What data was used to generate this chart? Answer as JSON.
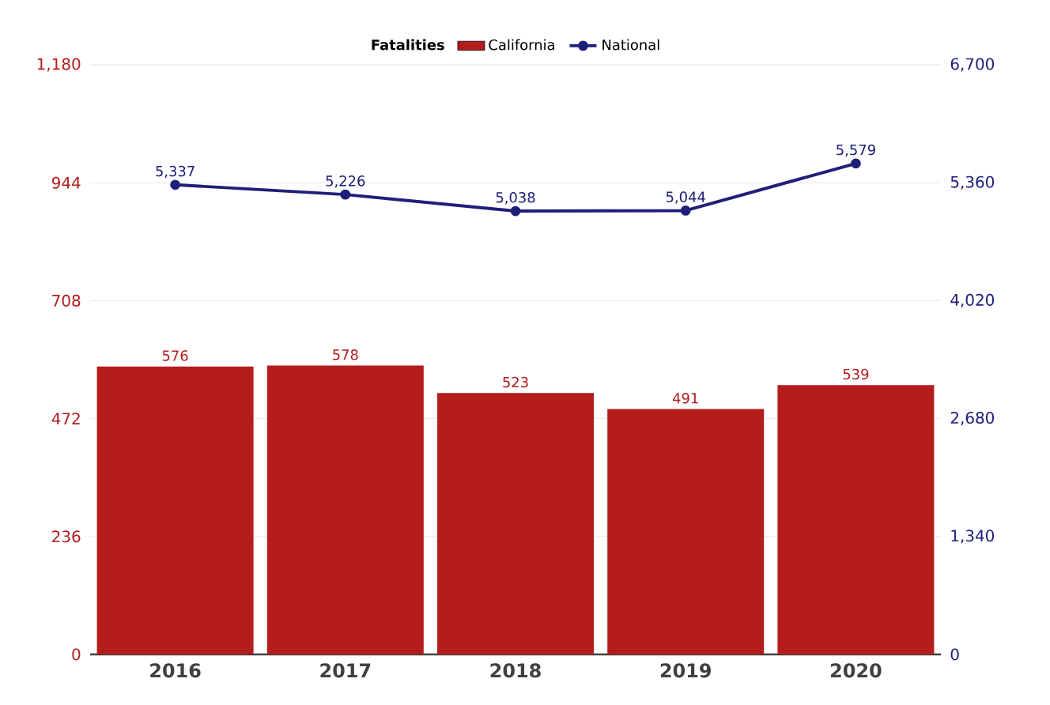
{
  "chart_data": {
    "type": "bar",
    "legend_title": "Fatalities",
    "legend": "top",
    "grid": "y",
    "categories": [
      "2016",
      "2017",
      "2018",
      "2019",
      "2020"
    ],
    "series": [
      {
        "name": "California",
        "color": "#b51c1c",
        "values": [
          576,
          578,
          523,
          491,
          539
        ],
        "value_labels": [
          "576",
          "578",
          "523",
          "491",
          "539"
        ]
      },
      {
        "name": "National",
        "type": "line",
        "axis": "y2",
        "marker": "circle",
        "color": "#1f1f7a",
        "values": [
          5337,
          5226,
          5038,
          5044,
          5579
        ],
        "value_labels": [
          "5,337",
          "5,226",
          "5,038",
          "5,044",
          "5,579"
        ]
      }
    ],
    "ylim": [
      0,
      1180
    ],
    "yticks": [
      0,
      236,
      472,
      708,
      944,
      {
        "value": 1180,
        "label": "1,180"
      }
    ],
    "y2lim": [
      0,
      6700
    ],
    "y2ticks": [
      0,
      {
        "value": 1340,
        "label": "1,340"
      },
      {
        "value": 2680,
        "label": "2,680"
      },
      {
        "value": 4020,
        "label": "4,020"
      },
      {
        "value": 5360,
        "label": "5,360"
      },
      {
        "value": 6700,
        "label": "6,700"
      }
    ]
  }
}
